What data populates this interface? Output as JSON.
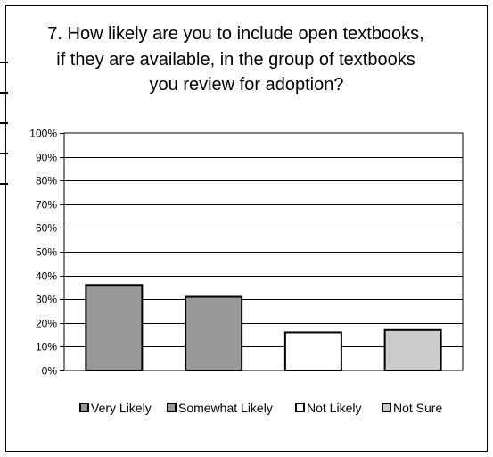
{
  "chart_data": {
    "type": "bar",
    "title_lines": [
      "7. How likely are you to include open textbooks,",
      "if they are available, in the group of textbooks",
      "you review for adoption?"
    ],
    "categories": [
      "Very Likely",
      "Somewhat Likely",
      "Not Likely",
      "Not Sure"
    ],
    "values": [
      36,
      31,
      16,
      17
    ],
    "colors": [
      "#999999",
      "#999999",
      "#ffffff",
      "#cccccc"
    ],
    "ylim": [
      0,
      100
    ],
    "yticks": [
      "0%",
      "10%",
      "20%",
      "30%",
      "40%",
      "50%",
      "60%",
      "70%",
      "80%",
      "90%",
      "100%"
    ],
    "grid": true,
    "legend_position": "bottom",
    "xlabel": "",
    "ylabel": ""
  }
}
